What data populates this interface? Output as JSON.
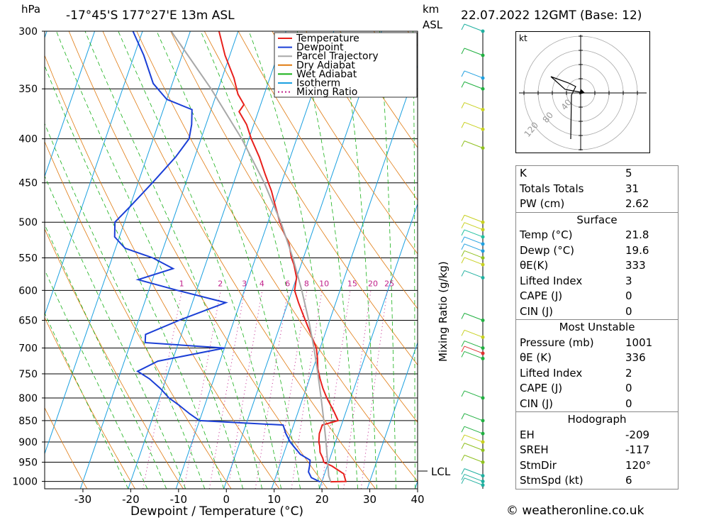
{
  "header": {
    "pressure_unit": "hPa",
    "location": "-17°45'S  177°27'E  13m  ASL",
    "km_label": "km",
    "asl_label": "ASL",
    "datetime": "22.07.2022  12GMT  (Base: 12)"
  },
  "footer": {
    "copyright": "© weatheronline.co.uk"
  },
  "legend": [
    {
      "name": "Temperature",
      "color": "#e8201c",
      "style": "solid"
    },
    {
      "name": "Dewpoint",
      "color": "#1b3fd6",
      "style": "solid"
    },
    {
      "name": "Parcel Trajectory",
      "color": "#a8a8a8",
      "style": "solid"
    },
    {
      "name": "Dry Adiabat",
      "color": "#e07a10",
      "style": "solid"
    },
    {
      "name": "Wet Adiabat",
      "color": "#18b018",
      "style": "solid"
    },
    {
      "name": "Isotherm",
      "color": "#1aa0e0",
      "style": "solid"
    },
    {
      "name": "Mixing Ratio",
      "color": "#c0208a",
      "style": "dotted"
    }
  ],
  "chart_data": {
    "type": "line",
    "title": "-17°45'S 177°27'E 13m ASL",
    "xlabel": "Dewpoint / Temperature (°C)",
    "ylabel": "hPa",
    "y_scale": "log",
    "xlim": [
      -38,
      40
    ],
    "ylim": [
      1020,
      300
    ],
    "x_ticks": [
      -30,
      -20,
      -10,
      0,
      10,
      20,
      30,
      40
    ],
    "y_ticks": [
      300,
      350,
      400,
      450,
      500,
      550,
      600,
      650,
      700,
      750,
      800,
      850,
      900,
      950,
      1000
    ],
    "mixing_ratio_axis_label": "Mixing Ratio (g/kg)",
    "mixing_ratio_labels": [
      "1",
      "2",
      "3",
      "4",
      "6",
      "8",
      "10",
      "15",
      "20",
      "25"
    ],
    "lcl_label": "LCL",
    "lcl_pressure": 985,
    "series": [
      {
        "name": "Temperature",
        "color": "#e8201c",
        "p": [
          1001,
          1000,
          980,
          960,
          950,
          940,
          925,
          910,
          900,
          880,
          860,
          850,
          830,
          800,
          780,
          760,
          740,
          720,
          700,
          680,
          660,
          640,
          620,
          600,
          580,
          560,
          550,
          530,
          515,
          500,
          480,
          460,
          440,
          420,
          400,
          385,
          372,
          365,
          355,
          340,
          320,
          300
        ],
        "x": [
          21.8,
          25,
          24,
          21,
          19,
          18.5,
          17.5,
          17,
          16.5,
          16,
          16,
          19,
          17.5,
          15,
          13.5,
          12.2,
          11,
          10.2,
          9.2,
          7.5,
          5.8,
          4,
          2.2,
          0.5,
          0,
          -1.5,
          -2.5,
          -4,
          -5.8,
          -7.5,
          -9.5,
          -11.5,
          -14,
          -16.5,
          -19.5,
          -21.5,
          -24,
          -23.5,
          -25.5,
          -27.5,
          -31,
          -34
        ]
      },
      {
        "name": "Dewpoint",
        "color": "#1b3fd6",
        "p": [
          1001,
          990,
          975,
          960,
          945,
          930,
          915,
          900,
          880,
          860,
          850,
          835,
          815,
          800,
          780,
          760,
          745,
          725,
          700,
          690,
          675,
          650,
          620,
          600,
          583,
          566,
          550,
          536,
          520,
          500,
          480,
          450,
          420,
          400,
          385,
          370,
          360,
          345,
          320,
          300
        ],
        "x": [
          19.6,
          17.5,
          16.5,
          16.3,
          16,
          13.5,
          12,
          10.5,
          9,
          7.8,
          -10,
          -12.5,
          -15.5,
          -18,
          -20.5,
          -23.5,
          -26.5,
          -23,
          -10,
          -27,
          -27.5,
          -21.5,
          -13,
          -24,
          -33,
          -26.5,
          -31.5,
          -38,
          -41,
          -42,
          -40,
          -37,
          -34,
          -32.5,
          -33,
          -34,
          -40,
          -44,
          -48,
          -52
        ]
      },
      {
        "name": "Parcel Trajectory",
        "color": "#a8a8a8",
        "p": [
          1000,
          985,
          950,
          900,
          850,
          800,
          750,
          700,
          650,
          600,
          550,
          500,
          450,
          400,
          350,
          300
        ],
        "x": [
          21.8,
          21,
          19.8,
          18,
          16,
          13.8,
          11.4,
          8.7,
          5.6,
          2,
          -2.2,
          -7.3,
          -13.6,
          -21.5,
          -31.5,
          -44
        ]
      }
    ]
  },
  "hodograph": {
    "unit_label": "kt",
    "ring_labels": [
      "40",
      "80",
      "120"
    ]
  },
  "indices": {
    "rows": [
      {
        "label": "K",
        "value": "5"
      },
      {
        "label": "Totals Totals",
        "value": "31"
      },
      {
        "label": "PW (cm)",
        "value": "2.62"
      }
    ],
    "surface": {
      "title": "Surface",
      "rows": [
        {
          "label": "Temp (°C)",
          "value": "21.8"
        },
        {
          "label": "Dewp (°C)",
          "value": "19.6"
        },
        {
          "label": "θE(K)",
          "value": "333"
        },
        {
          "label": "Lifted Index",
          "value": "3"
        },
        {
          "label": "CAPE (J)",
          "value": "0"
        },
        {
          "label": "CIN (J)",
          "value": "0"
        }
      ]
    },
    "most_unstable": {
      "title": "Most Unstable",
      "rows": [
        {
          "label": "Pressure (mb)",
          "value": "1001"
        },
        {
          "label": "θE (K)",
          "value": "336"
        },
        {
          "label": "Lifted Index",
          "value": "2"
        },
        {
          "label": "CAPE (J)",
          "value": "0"
        },
        {
          "label": "CIN (J)",
          "value": "0"
        }
      ]
    },
    "hodograph": {
      "title": "Hodograph",
      "rows": [
        {
          "label": "EH",
          "value": "-209"
        },
        {
          "label": "SREH",
          "value": "-117"
        },
        {
          "label": "StmDir",
          "value": "120°"
        },
        {
          "label": "StmSpd (kt)",
          "value": "6"
        }
      ]
    }
  }
}
